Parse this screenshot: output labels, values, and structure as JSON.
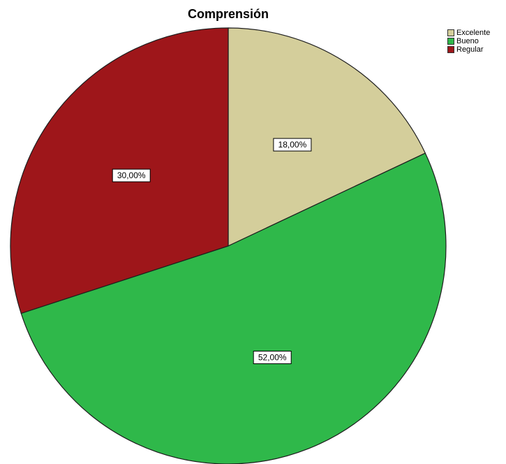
{
  "chart_data": {
    "type": "pie",
    "title": "Comprensión",
    "categories": [
      "Excelente",
      "Bueno",
      "Regular"
    ],
    "values": [
      18,
      52,
      30
    ],
    "data_labels": [
      "18,00%",
      "52,00%",
      "30,00%"
    ],
    "colors": [
      "#d4ce9b",
      "#2fb84a",
      "#9e161a"
    ],
    "start_angle_deg": 0,
    "direction": "clockwise",
    "legend": {
      "placement": "top-right",
      "entries": [
        "Excelente",
        "Bueno",
        "Regular"
      ]
    }
  }
}
